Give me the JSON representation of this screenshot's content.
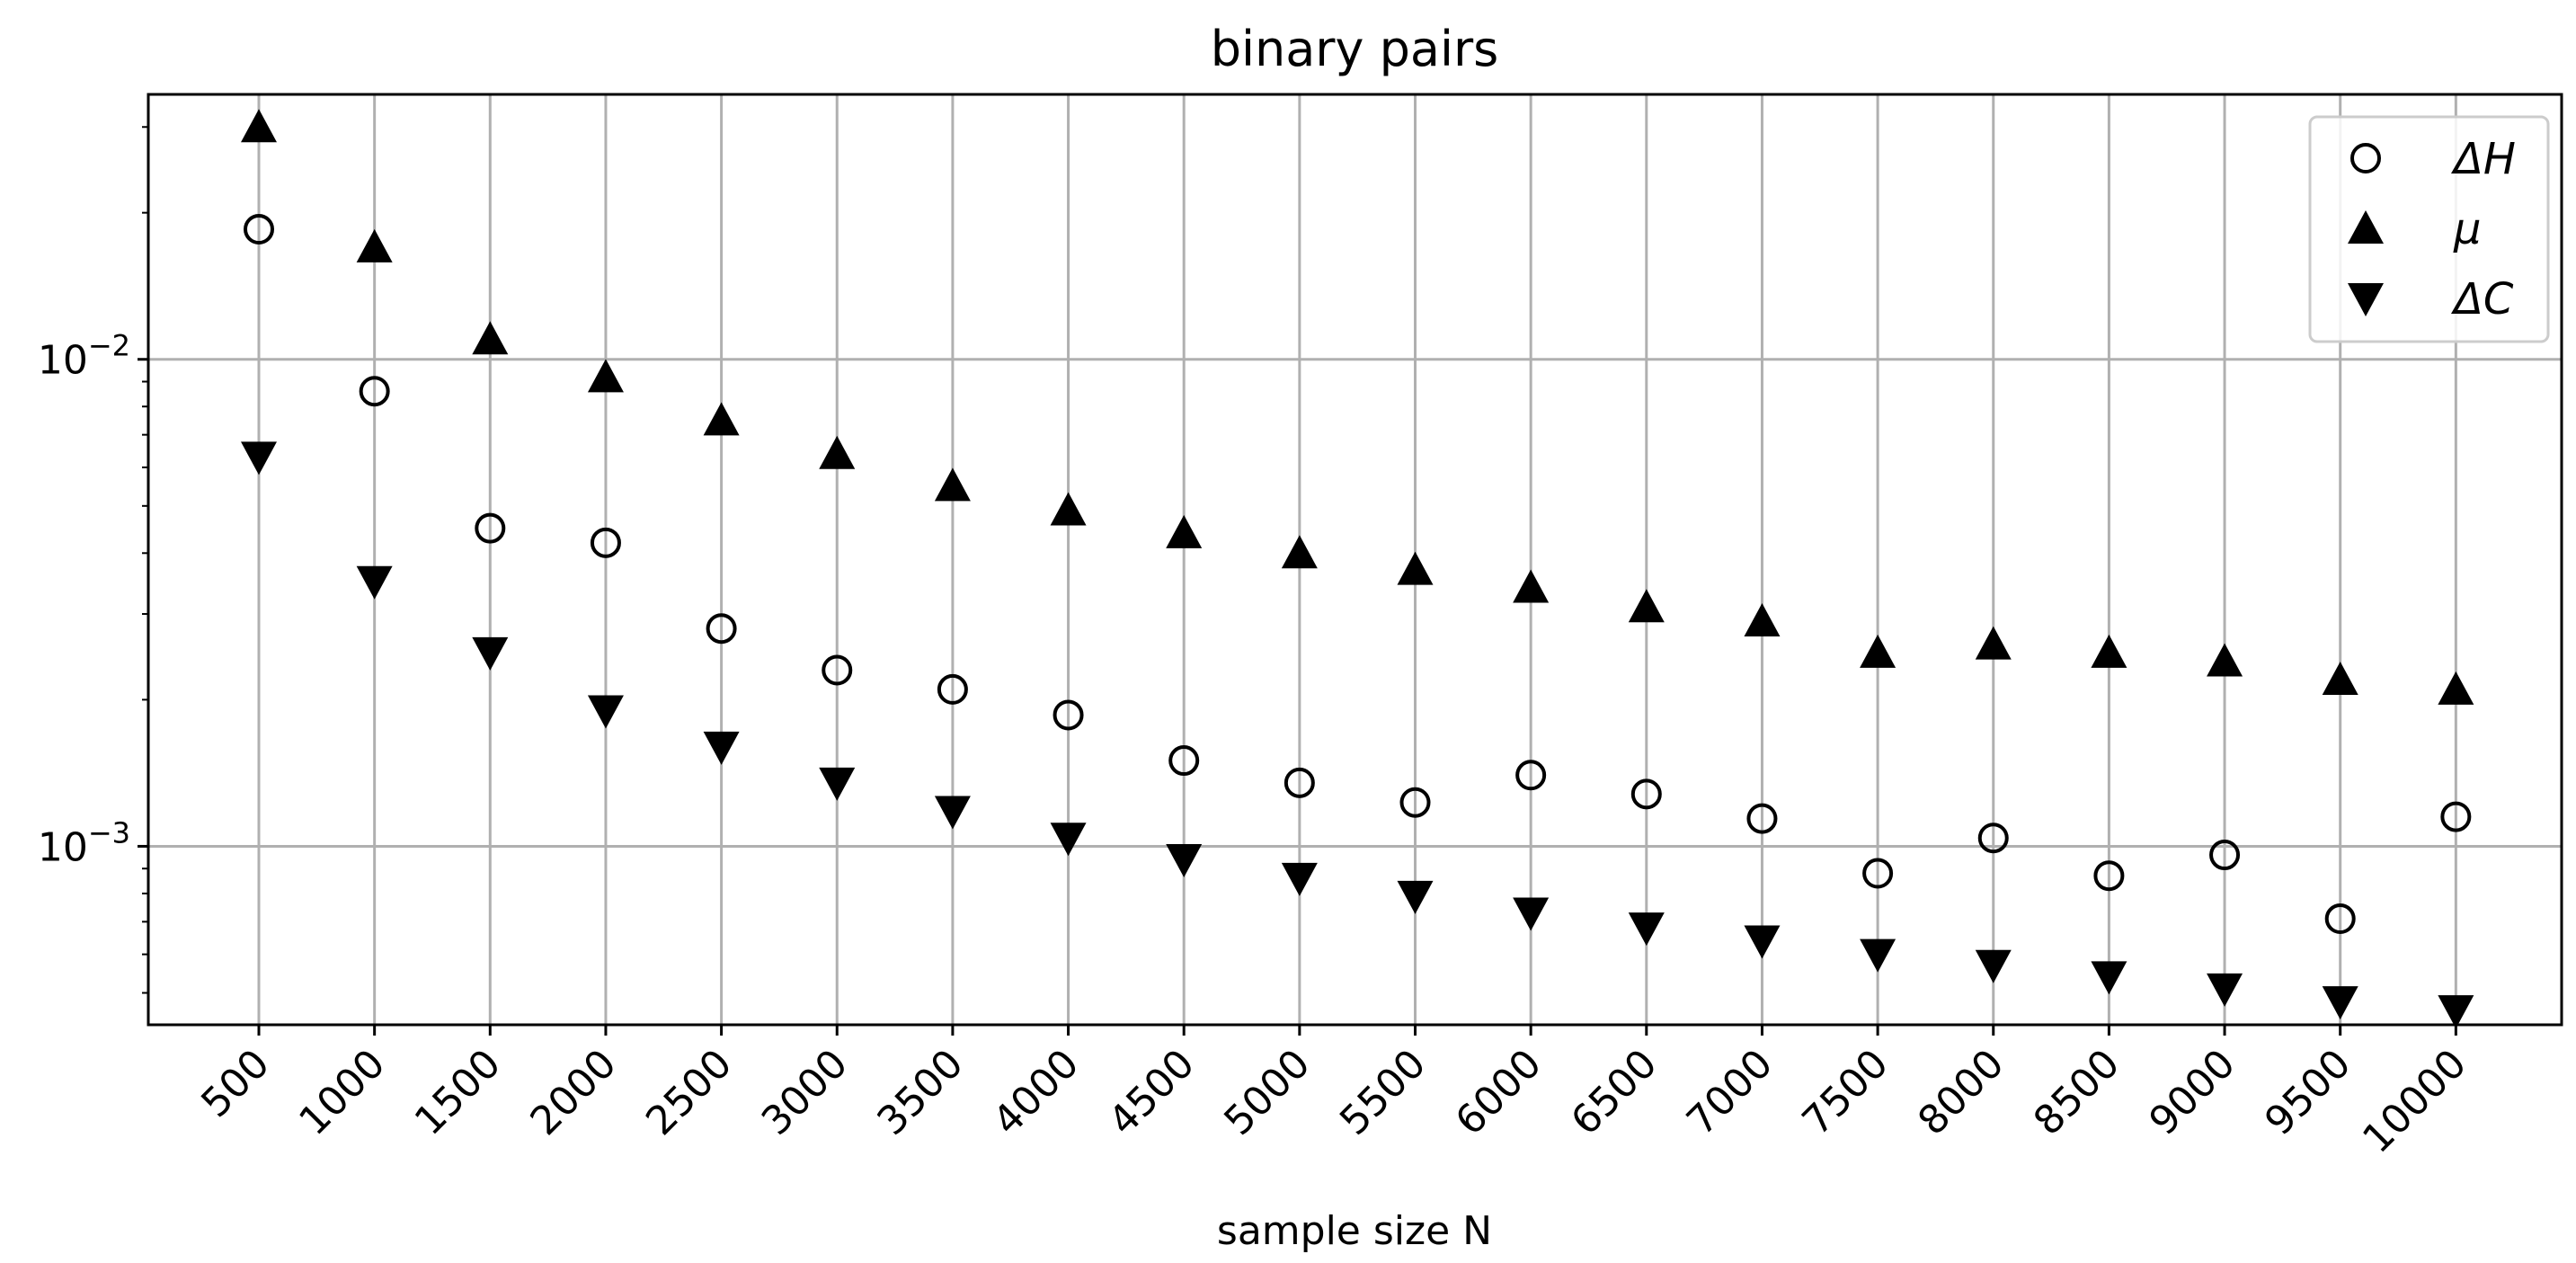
{
  "chart_data": {
    "type": "scatter",
    "title": "binary pairs",
    "xlabel": "sample size N",
    "ylabel": "",
    "yscale": "log",
    "ylim": [
      0.00043,
      0.035
    ],
    "grid": true,
    "legend_position": "top-right",
    "x": [
      500,
      1000,
      1500,
      2000,
      2500,
      3000,
      3500,
      4000,
      4500,
      5000,
      5500,
      6000,
      6500,
      7000,
      7500,
      8000,
      8500,
      9000,
      9500,
      10000
    ],
    "x_tick_labels": [
      "500",
      "1000",
      "1500",
      "2000",
      "2500",
      "3000",
      "3500",
      "4000",
      "4500",
      "5000",
      "5500",
      "6000",
      "6500",
      "7000",
      "7500",
      "8000",
      "8500",
      "9000",
      "9500",
      "10000"
    ],
    "y_tick_labels": [
      {
        "base": "10",
        "exp": "−2",
        "value": 0.01
      },
      {
        "base": "10",
        "exp": "−3",
        "value": 0.001
      }
    ],
    "series": [
      {
        "name": "ΔH",
        "marker": "circle-open",
        "color": "#000000",
        "values": [
          0.0185,
          0.0086,
          0.0045,
          0.0042,
          0.0028,
          0.0023,
          0.0021,
          0.00186,
          0.0015,
          0.00135,
          0.00123,
          0.0014,
          0.00128,
          0.00114,
          0.00088,
          0.00104,
          0.00087,
          0.00096,
          0.00071,
          0.00115
        ]
      },
      {
        "name": "μ",
        "marker": "triangle-up",
        "color": "#000000",
        "values": [
          0.03,
          0.017,
          0.011,
          0.0092,
          0.0075,
          0.0064,
          0.0055,
          0.0049,
          0.0044,
          0.004,
          0.0037,
          0.0034,
          0.0031,
          0.0029,
          0.0025,
          0.0026,
          0.0025,
          0.0024,
          0.0022,
          0.0021
        ]
      },
      {
        "name": "ΔC",
        "marker": "triangle-down",
        "color": "#000000",
        "values": [
          0.0063,
          0.0035,
          0.0025,
          0.0019,
          0.0016,
          0.00135,
          0.00118,
          0.00104,
          0.00094,
          0.00086,
          0.00079,
          0.00073,
          0.00068,
          0.00064,
          0.0006,
          0.00057,
          0.00054,
          0.00051,
          0.00048,
          0.00046
        ]
      }
    ]
  }
}
